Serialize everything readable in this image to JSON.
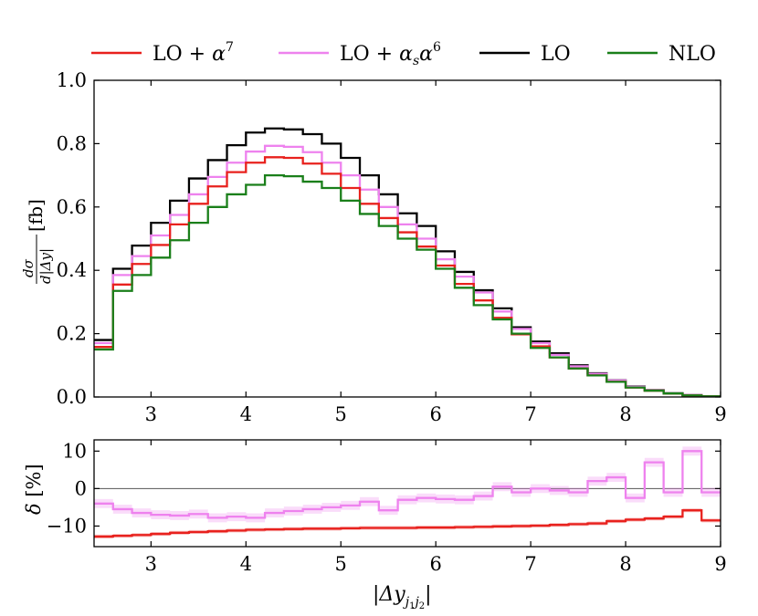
{
  "legend": [
    {
      "label": "LO + α⁷",
      "color": "#e8211d"
    },
    {
      "label": "LO + αₛα⁶",
      "color": "#ee82ee"
    },
    {
      "label": "LO",
      "color": "#000000"
    },
    {
      "label": "NLO",
      "color": "#1a7f1a"
    }
  ],
  "chart_data": [
    {
      "type": "line",
      "step": true,
      "title": "",
      "xlabel": "",
      "ylabel": "dσ/d|Δy| [fb]",
      "xlim": [
        2.4,
        9.0
      ],
      "ylim": [
        0.0,
        1.0
      ],
      "xticks": [
        "3",
        "4",
        "5",
        "6",
        "7",
        "8",
        "9"
      ],
      "yticks": [
        "0.0",
        "0.2",
        "0.4",
        "0.6",
        "0.8",
        "1.0"
      ],
      "bin_edges": [
        2.4,
        2.6,
        2.8,
        3.0,
        3.2,
        3.4,
        3.6,
        3.8,
        4.0,
        4.2,
        4.4,
        4.6,
        4.8,
        5.0,
        5.2,
        5.4,
        5.6,
        5.8,
        6.0,
        6.2,
        6.4,
        6.6,
        6.8,
        7.0,
        7.2,
        7.4,
        7.6,
        7.8,
        8.0,
        8.2,
        8.4,
        8.6,
        8.8,
        9.0
      ],
      "series": [
        {
          "name": "LO",
          "color": "#000000",
          "values": [
            0.18,
            0.405,
            0.478,
            0.55,
            0.62,
            0.69,
            0.748,
            0.795,
            0.835,
            0.848,
            0.845,
            0.83,
            0.8,
            0.755,
            0.7,
            0.64,
            0.58,
            0.54,
            0.46,
            0.395,
            0.337,
            0.28,
            0.22,
            0.175,
            0.138,
            0.1,
            0.075,
            0.053,
            0.033,
            0.022,
            0.012,
            0.006,
            0.002
          ]
        },
        {
          "name": "LO + αₛα⁶",
          "color": "#ee82ee",
          "values": [
            0.17,
            0.385,
            0.445,
            0.51,
            0.575,
            0.64,
            0.695,
            0.74,
            0.775,
            0.793,
            0.79,
            0.773,
            0.74,
            0.7,
            0.655,
            0.6,
            0.545,
            0.5,
            0.435,
            0.38,
            0.33,
            0.27,
            0.215,
            0.17,
            0.133,
            0.097,
            0.073,
            0.052,
            0.032,
            0.021,
            0.011,
            0.006,
            0.002
          ]
        },
        {
          "name": "LO + α⁷",
          "color": "#e8211d",
          "values": [
            0.158,
            0.355,
            0.42,
            0.48,
            0.545,
            0.61,
            0.665,
            0.71,
            0.74,
            0.757,
            0.755,
            0.737,
            0.705,
            0.66,
            0.61,
            0.565,
            0.52,
            0.475,
            0.415,
            0.357,
            0.305,
            0.25,
            0.198,
            0.16,
            0.125,
            0.09,
            0.068,
            0.048,
            0.03,
            0.02,
            0.011,
            0.005,
            0.002
          ]
        },
        {
          "name": "NLO",
          "color": "#1a7f1a",
          "values": [
            0.15,
            0.335,
            0.385,
            0.44,
            0.495,
            0.55,
            0.6,
            0.64,
            0.67,
            0.7,
            0.697,
            0.68,
            0.66,
            0.62,
            0.578,
            0.54,
            0.5,
            0.465,
            0.405,
            0.345,
            0.29,
            0.245,
            0.2,
            0.155,
            0.125,
            0.09,
            0.068,
            0.048,
            0.03,
            0.02,
            0.011,
            0.005,
            0.002
          ]
        }
      ]
    },
    {
      "type": "line",
      "step": true,
      "title": "",
      "xlabel": "|Δy_j1j2|",
      "ylabel": "δ [%]",
      "xlim": [
        2.4,
        9.0
      ],
      "ylim": [
        -15.5,
        13.0
      ],
      "xticks": [
        "3",
        "4",
        "5",
        "6",
        "7",
        "8",
        "9"
      ],
      "yticks": [
        "10",
        "0",
        "−10"
      ],
      "reference_line": 0,
      "bin_edges": [
        2.4,
        2.6,
        2.8,
        3.0,
        3.2,
        3.4,
        3.6,
        3.8,
        4.0,
        4.2,
        4.4,
        4.6,
        4.8,
        5.0,
        5.2,
        5.4,
        5.6,
        5.8,
        6.0,
        6.2,
        6.4,
        6.6,
        6.8,
        7.0,
        7.2,
        7.4,
        7.6,
        7.8,
        8.0,
        8.2,
        8.4,
        8.6,
        8.8,
        9.0
      ],
      "series": [
        {
          "name": "LO + αₛα⁶",
          "color": "#ee82ee",
          "band": 1.2,
          "values": [
            -4.0,
            -5.5,
            -6.5,
            -7.0,
            -7.2,
            -6.8,
            -7.8,
            -7.5,
            -7.8,
            -6.5,
            -6.0,
            -5.5,
            -5.0,
            -4.5,
            -3.5,
            -5.8,
            -3.0,
            -2.5,
            -2.8,
            -3.0,
            -2.0,
            0.5,
            -1.0,
            0.0,
            -0.5,
            -1.0,
            2.0,
            3.0,
            -2.5,
            7.0,
            -1.0,
            10.0,
            -1.0
          ]
        },
        {
          "name": "LO + α⁷",
          "color": "#e8211d",
          "band": 0.5,
          "values": [
            -12.8,
            -12.6,
            -12.4,
            -12.1,
            -11.8,
            -11.6,
            -11.4,
            -11.2,
            -11.0,
            -10.9,
            -10.8,
            -10.7,
            -10.7,
            -10.6,
            -10.5,
            -10.5,
            -10.5,
            -10.4,
            -10.4,
            -10.3,
            -10.2,
            -10.1,
            -10.0,
            -9.9,
            -9.7,
            -9.5,
            -9.3,
            -8.7,
            -8.3,
            -8.0,
            -7.5,
            -5.8,
            -8.5
          ]
        }
      ]
    }
  ],
  "ylabel_upper": {
    "numerator": "dσ",
    "denominator": "d|Δy|",
    "unit": "[fb]"
  },
  "ylabel_lower": {
    "symbol": "δ",
    "unit": "[%]"
  },
  "xlabel_lower": {
    "main": "|Δy",
    "sub": "j",
    "sub1": "1",
    "mid": "j",
    "sub2": "2",
    "end": "|"
  }
}
